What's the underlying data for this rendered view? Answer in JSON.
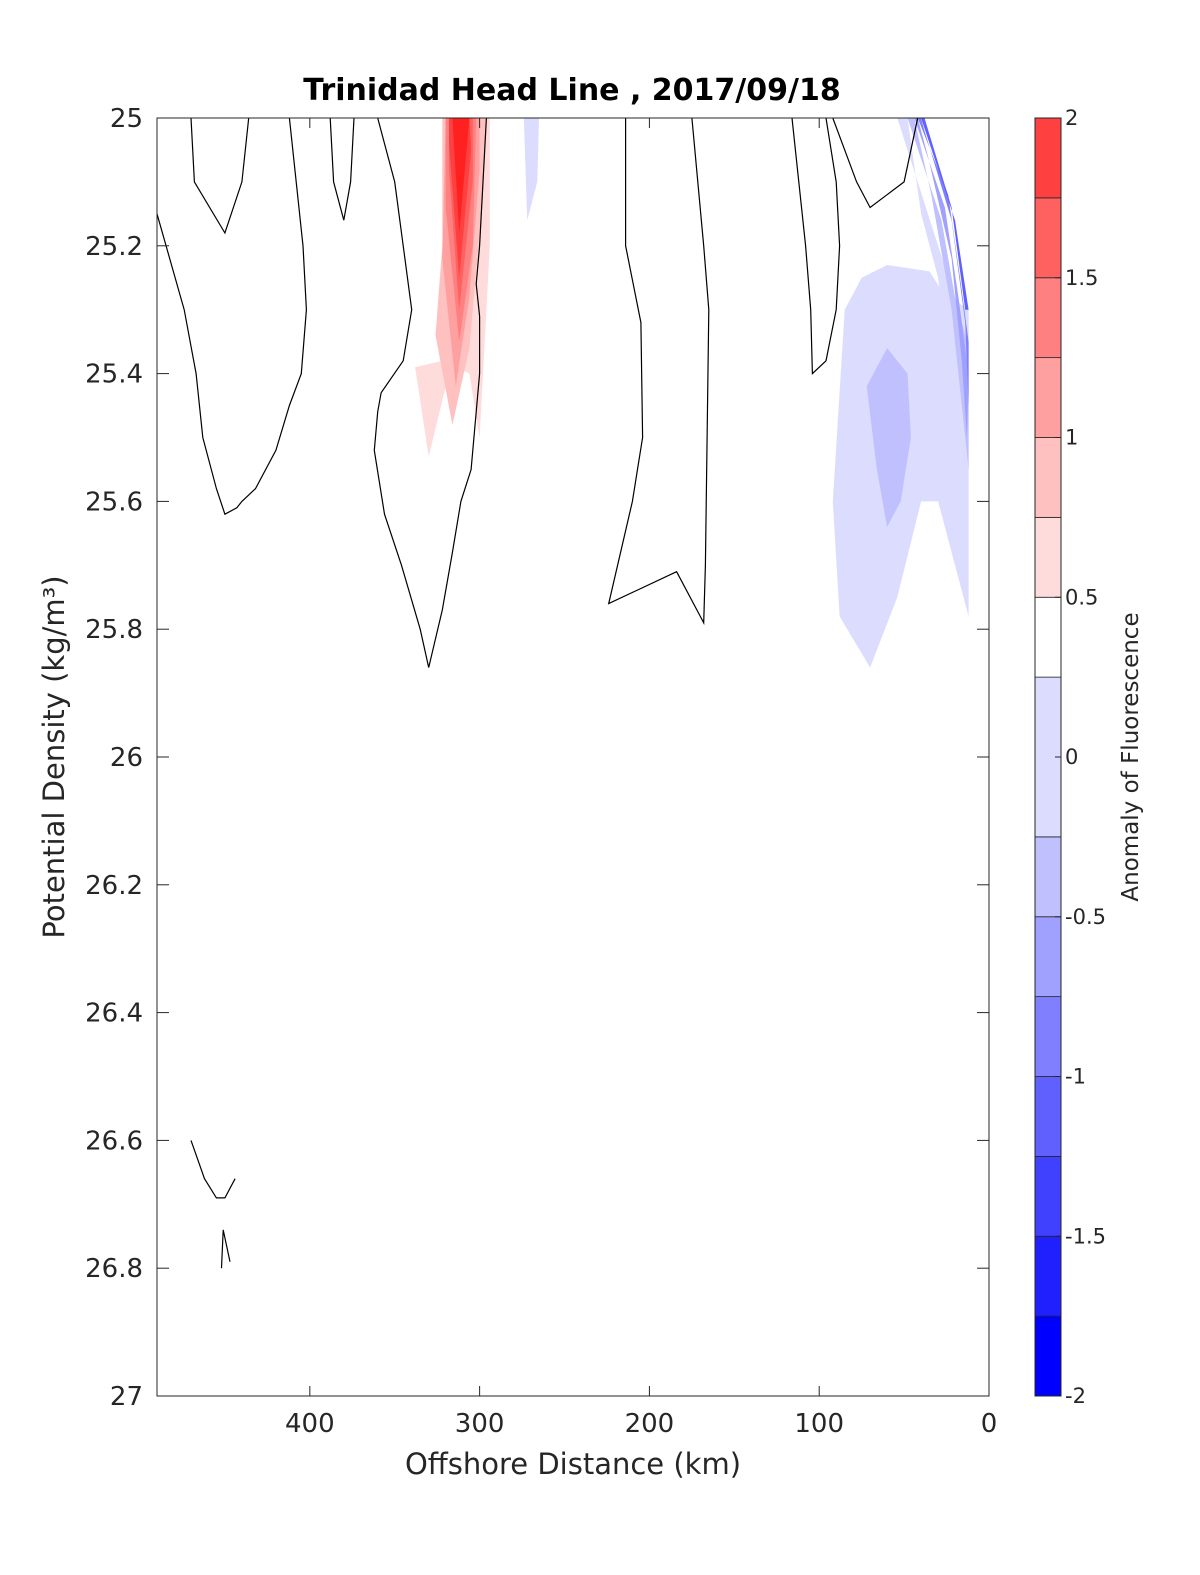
{
  "chart_data": {
    "type": "contour",
    "title": "Trinidad Head Line , 2017/09/18",
    "xlabel": "Offshore Distance (km)",
    "ylabel": "Potential Density (kg/m³)",
    "xlim": [
      490,
      0
    ],
    "ylim": [
      25,
      27
    ],
    "x_reversed": true,
    "y_reversed": true,
    "xticks": [
      400,
      300,
      200,
      100,
      0
    ],
    "yticks": [
      25,
      25.2,
      25.4,
      25.6,
      25.8,
      26,
      26.2,
      26.4,
      26.6,
      26.8,
      27
    ],
    "colorbar": {
      "label": "Anomaly of Fluorescence",
      "clim": [
        -2,
        2
      ],
      "ticks": [
        -2,
        -1.5,
        -1,
        -0.5,
        0,
        0.5,
        1,
        1.5,
        2
      ],
      "levels": [
        -2,
        -1.75,
        -1.5,
        -1.25,
        -1,
        -0.75,
        -0.5,
        -0.25,
        0.25,
        0.5,
        0.75,
        1,
        1.25,
        1.5,
        1.75,
        2
      ],
      "colors": [
        "#0000ff",
        "#2020ff",
        "#4040ff",
        "#6060ff",
        "#8080ff",
        "#a0a0ff",
        "#c0c0ff",
        "#dcdcff",
        "#ffffff",
        "#ffdcdc",
        "#ffc0c0",
        "#ffa0a0",
        "#ff8080",
        "#ff6060",
        "#ff4040",
        "#ff2020",
        "#ff0000"
      ]
    },
    "filled_regions": [
      {
        "level": 0.25,
        "color": "#ffdcdc",
        "points": [
          [
            338,
            25.39
          ],
          [
            330,
            25.53
          ],
          [
            320,
            25.42
          ],
          [
            312,
            25.2
          ],
          [
            310,
            25.0
          ],
          [
            294,
            25.0
          ],
          [
            294,
            25.2
          ],
          [
            300,
            25.5
          ],
          [
            306,
            25.4
          ],
          [
            322,
            25.38
          ]
        ]
      },
      {
        "level": 0.5,
        "color": "#ffc0c0",
        "points": [
          [
            326,
            25.34
          ],
          [
            316,
            25.48
          ],
          [
            306,
            25.36
          ],
          [
            298,
            25.12
          ],
          [
            296,
            25.0
          ],
          [
            322,
            25.0
          ],
          [
            322,
            25.2
          ]
        ]
      },
      {
        "level": 0.75,
        "color": "#ffa0a0",
        "points": [
          [
            322,
            25.22
          ],
          [
            314,
            25.42
          ],
          [
            306,
            25.28
          ],
          [
            300,
            25.08
          ],
          [
            300,
            25.0
          ],
          [
            320,
            25.0
          ]
        ]
      },
      {
        "level": 1.0,
        "color": "#ff8080",
        "points": [
          [
            320,
            25.14
          ],
          [
            312,
            25.35
          ],
          [
            304,
            25.2
          ],
          [
            302,
            25.0
          ],
          [
            320,
            25.0
          ]
        ]
      },
      {
        "level": 1.25,
        "color": "#ff6060",
        "points": [
          [
            318,
            25.08
          ],
          [
            312,
            25.3
          ],
          [
            304,
            25.1
          ],
          [
            304,
            25.0
          ],
          [
            318,
            25.0
          ]
        ]
      },
      {
        "level": 1.5,
        "color": "#ff4040",
        "points": [
          [
            318,
            25.04
          ],
          [
            312,
            25.25
          ],
          [
            305,
            25.05
          ],
          [
            306,
            25.0
          ],
          [
            318,
            25.0
          ]
        ]
      },
      {
        "level": 1.75,
        "color": "#ff2020",
        "points": [
          [
            316,
            25.0
          ],
          [
            312,
            25.18
          ],
          [
            306,
            25.0
          ]
        ]
      },
      {
        "level": -0.25,
        "color": "#dcdcff",
        "points": [
          [
            274,
            25.0
          ],
          [
            272,
            25.16
          ],
          [
            266,
            25.1
          ],
          [
            265,
            25.0
          ]
        ]
      },
      {
        "level": -0.25,
        "color": "#dcdcff",
        "points": [
          [
            92,
            25.6
          ],
          [
            88,
            25.78
          ],
          [
            70,
            25.86
          ],
          [
            54,
            25.75
          ],
          [
            40,
            25.6
          ],
          [
            30,
            25.6
          ],
          [
            20,
            25.7
          ],
          [
            12,
            25.78
          ],
          [
            12,
            25.3
          ],
          [
            28,
            25.27
          ],
          [
            35,
            25.24
          ],
          [
            60,
            25.23
          ],
          [
            75,
            25.25
          ],
          [
            85,
            25.3
          ]
        ]
      },
      {
        "level": -0.5,
        "color": "#c0c0ff",
        "points": [
          [
            72,
            25.42
          ],
          [
            66,
            25.55
          ],
          [
            60,
            25.64
          ],
          [
            52,
            25.6
          ],
          [
            46,
            25.5
          ],
          [
            48,
            25.4
          ],
          [
            60,
            25.36
          ]
        ]
      },
      {
        "level": -0.25,
        "color": "#dcdcff",
        "points": [
          [
            54,
            25.0
          ],
          [
            30,
            25.2
          ],
          [
            24,
            25.25
          ],
          [
            20,
            25.32
          ],
          [
            12,
            25.32
          ],
          [
            12,
            25.6
          ],
          [
            16,
            25.5
          ],
          [
            24,
            25.4
          ],
          [
            30,
            25.25
          ],
          [
            40,
            25.15
          ],
          [
            48,
            25.0
          ]
        ]
      },
      {
        "level": -0.5,
        "color": "#c0c0ff",
        "points": [
          [
            48,
            25.0
          ],
          [
            28,
            25.16
          ],
          [
            20,
            25.28
          ],
          [
            12,
            25.36
          ],
          [
            12,
            25.55
          ],
          [
            16,
            25.45
          ],
          [
            22,
            25.3
          ],
          [
            34,
            25.12
          ],
          [
            44,
            25.0
          ]
        ]
      },
      {
        "level": -0.75,
        "color": "#a0a0ff",
        "points": [
          [
            44,
            25.0
          ],
          [
            26,
            25.14
          ],
          [
            18,
            25.28
          ],
          [
            12,
            25.4
          ],
          [
            13,
            25.5
          ],
          [
            16,
            25.38
          ],
          [
            22,
            25.22
          ],
          [
            36,
            25.06
          ],
          [
            42,
            25.0
          ]
        ]
      },
      {
        "level": -1.0,
        "color": "#8080ff",
        "points": [
          [
            42,
            25.0
          ],
          [
            24,
            25.12
          ],
          [
            16,
            25.27
          ],
          [
            12,
            25.35
          ],
          [
            12,
            25.45
          ],
          [
            14,
            25.32
          ],
          [
            22,
            25.16
          ],
          [
            38,
            25.02
          ],
          [
            40,
            25.0
          ]
        ]
      },
      {
        "level": -1.25,
        "color": "#6060ff",
        "points": [
          [
            40,
            25.0
          ],
          [
            20,
            25.16
          ],
          [
            12,
            25.3
          ],
          [
            14,
            25.3
          ],
          [
            22,
            25.14
          ],
          [
            38,
            25.0
          ]
        ]
      }
    ],
    "contour_lines": [
      {
        "level": 0,
        "points": [
          [
            490,
            25.15
          ],
          [
            474,
            25.3
          ],
          [
            467,
            25.4
          ],
          [
            463,
            25.5
          ],
          [
            455,
            25.58
          ],
          [
            450,
            25.62
          ],
          [
            443,
            25.61
          ],
          [
            440,
            25.6
          ],
          [
            432,
            25.58
          ],
          [
            420,
            25.52
          ],
          [
            412,
            25.45
          ],
          [
            405,
            25.4
          ],
          [
            402,
            25.3
          ],
          [
            404,
            25.2
          ],
          [
            412,
            25.0
          ]
        ]
      },
      {
        "level": 0,
        "points": [
          [
            470,
            25.0
          ],
          [
            468,
            25.1
          ],
          [
            450,
            25.18
          ],
          [
            440,
            25.1
          ],
          [
            436,
            25.0
          ]
        ]
      },
      {
        "level": 0,
        "points": [
          [
            388,
            25.0
          ],
          [
            386,
            25.1
          ],
          [
            380,
            25.16
          ],
          [
            376,
            25.1
          ],
          [
            374,
            25.0
          ]
        ]
      },
      {
        "level": 0,
        "points": [
          [
            360,
            25.0
          ],
          [
            350,
            25.1
          ],
          [
            345,
            25.2
          ],
          [
            340,
            25.3
          ],
          [
            345,
            25.38
          ],
          [
            358,
            25.43
          ],
          [
            360,
            25.46
          ],
          [
            362,
            25.52
          ],
          [
            356,
            25.62
          ],
          [
            346,
            25.7
          ],
          [
            335,
            25.8
          ],
          [
            330,
            25.86
          ],
          [
            322,
            25.77
          ],
          [
            316,
            25.68
          ],
          [
            311,
            25.6
          ],
          [
            305,
            25.55
          ],
          [
            300,
            25.4
          ],
          [
            300,
            25.31
          ],
          [
            302,
            25.26
          ],
          [
            300,
            25.2
          ],
          [
            298,
            25.1
          ],
          [
            296,
            25.0
          ]
        ]
      },
      {
        "level": 0,
        "points": [
          [
            214,
            25.0
          ],
          [
            214,
            25.2
          ],
          [
            205,
            25.32
          ],
          [
            204,
            25.5
          ],
          [
            210,
            25.6
          ],
          [
            224,
            25.76
          ],
          [
            184,
            25.71
          ],
          [
            170,
            25.78
          ],
          [
            168,
            25.79
          ],
          [
            167,
            25.7
          ],
          [
            166,
            25.5
          ],
          [
            165,
            25.3
          ],
          [
            168,
            25.2
          ],
          [
            175,
            25.0
          ]
        ]
      },
      {
        "level": 0,
        "points": [
          [
            116,
            25.0
          ],
          [
            112,
            25.1
          ],
          [
            108,
            25.2
          ],
          [
            105,
            25.3
          ],
          [
            104,
            25.4
          ],
          [
            96,
            25.38
          ],
          [
            90,
            25.3
          ],
          [
            88,
            25.2
          ],
          [
            90,
            25.1
          ],
          [
            96,
            25.0
          ]
        ]
      },
      {
        "level": 0,
        "points": [
          [
            92,
            25.0
          ],
          [
            78,
            25.1
          ],
          [
            70,
            25.14
          ],
          [
            60,
            25.12
          ],
          [
            50,
            25.1
          ],
          [
            42,
            25.0
          ]
        ]
      },
      {
        "level": 0,
        "points": [
          [
            470,
            26.6
          ],
          [
            462,
            26.66
          ],
          [
            455,
            26.69
          ],
          [
            450,
            26.69
          ],
          [
            444,
            26.66
          ]
        ]
      },
      {
        "level": 0,
        "points": [
          [
            452,
            26.8
          ],
          [
            451,
            26.74
          ],
          [
            447,
            26.79
          ]
        ]
      }
    ]
  }
}
